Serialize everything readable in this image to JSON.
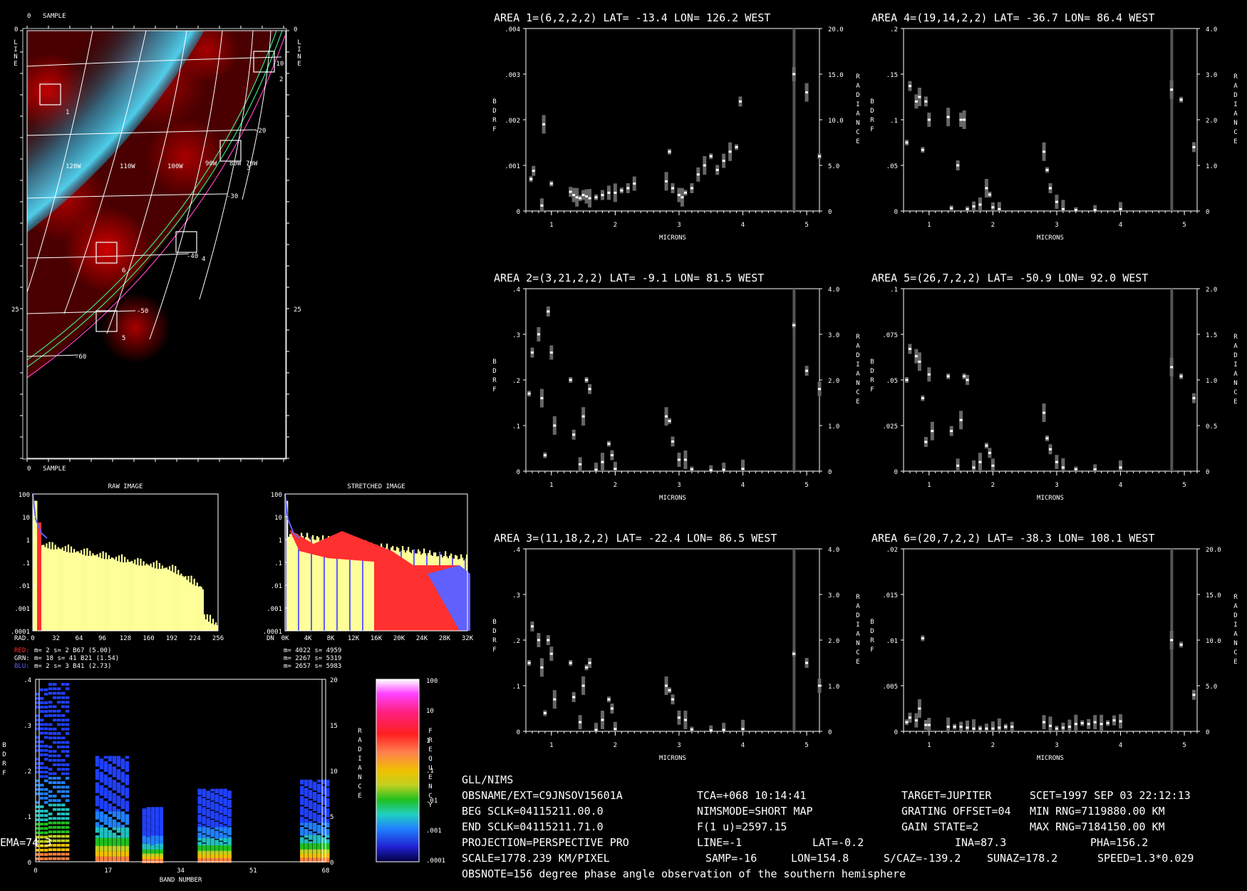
{
  "header": "GLL/NIMS",
  "info": [
    [
      "OBSNAME/EXT=C9JNSOV15601A",
      "TCA=+068 10:14:41",
      "TARGET=JUPITER",
      "SCET=1997 SEP 03 22:12:13"
    ],
    [
      "BEG SCLK=04115211.00.0",
      "NIMSMODE=SHORT MAP",
      "GRATING OFFSET=04",
      "MIN RNG=7119880.00 KM"
    ],
    [
      "END SCLK=04115211.71.0",
      "F(1 u)=2597.15",
      "GAIN STATE=2",
      "MAX RNG=7184150.00 KM"
    ],
    [
      "PROJECTION=PERSPECTIVE PRO",
      "LINE=-1",
      "LAT=-0.2",
      "INA=87.3",
      "PHA=156.2",
      "EMA=74.3"
    ],
    [
      "SCALE=1778.239 KM/PIXEL",
      "SAMP=-16",
      "LON=154.8",
      "S/CAZ=-139.2",
      "SUNAZ=178.2",
      "SPEED=1.3*0.029"
    ],
    [
      "OBSNOTE=156 degree phase angle observation of the southern hemisphere"
    ]
  ],
  "image": {
    "sample_label": "SAMPLE",
    "line_label": "LINE",
    "axis_ticks": [
      "0",
      "25"
    ],
    "lon_labels": [
      "120W",
      "110W",
      "100W",
      "90W",
      "80W",
      "70W"
    ],
    "lat_labels": [
      "-10",
      "-20",
      "-30",
      "-40",
      "-50",
      "-60"
    ],
    "boxes": [
      "1",
      "2",
      "3",
      "4",
      "5",
      "6"
    ]
  },
  "histograms": {
    "raw_title": "RAW IMAGE",
    "stretched_title": "STRETCHED IMAGE",
    "raw_x_label": "RAD.",
    "stretched_x_label": "DN",
    "y_ticks": [
      "100",
      "10",
      "1",
      ".1",
      ".01",
      ".001",
      ".0001"
    ],
    "raw_x_ticks": [
      "0",
      "32",
      "64",
      "96",
      "128",
      "160",
      "192",
      "224",
      "256"
    ],
    "stretched_x_ticks": [
      "0K",
      "4K",
      "8K",
      "12K",
      "16K",
      "20K",
      "24K",
      "28K",
      "32K"
    ],
    "stats_raw": [
      {
        "label": "RED:",
        "text": "m=    2 s=    2 B67 (5.00)",
        "color": "#ff3030"
      },
      {
        "label": "GRN:",
        "text": "m=   18 s=   41 B21 (1.54)",
        "color": "#ffffff"
      },
      {
        "label": "BLU:",
        "text": "m=    2 s=    3 B41 (2.73)",
        "color": "#6060ff"
      }
    ],
    "stats_stretched": [
      "m= 4022 s= 4959",
      "m= 2267 s= 5319",
      "m= 2657 s= 5983"
    ]
  },
  "spectrogram": {
    "y_ticks_left": [
      ".4",
      ".3",
      ".2",
      ".1",
      "0"
    ],
    "y_ticks_right": [
      "20",
      "15",
      "10",
      "5",
      "0"
    ],
    "x_ticks": [
      "0",
      "17",
      "34",
      "51",
      "68"
    ],
    "x_label": "BAND NUMBER",
    "left_label": "BDRF",
    "right_label": "RADIANCE",
    "colorbar_label": "FREQUENCY",
    "colorbar_ticks": [
      "100",
      "10",
      "1",
      ".1",
      ".01",
      ".001",
      ".0001"
    ]
  },
  "plot_labels": {
    "x": "MICRONS",
    "left": "BDRF",
    "right": "RADIANCE"
  },
  "chart_data": [
    {
      "type": "scatter",
      "title": "AREA 1=(6,2,2,2) LAT= -13.4 LON= 126.2 WEST",
      "xlabel": "MICRONS",
      "ylabel": "BDRF",
      "y2label": "RADIANCE",
      "xlim": [
        0.6,
        5.2
      ],
      "ylim": [
        0,
        0.004
      ],
      "y2lim": [
        0,
        20
      ],
      "yticks": [
        "0",
        ".001",
        ".002",
        ".003",
        ".004"
      ],
      "y2ticks": [
        "0",
        "5.0",
        "10.0",
        "15.0",
        "20.0"
      ],
      "xticks": [
        "1",
        "2",
        "3",
        "4",
        "5"
      ],
      "x": [
        0.68,
        0.72,
        0.85,
        0.88,
        1.0,
        1.3,
        1.35,
        1.4,
        1.45,
        1.5,
        1.55,
        1.6,
        1.7,
        1.8,
        1.9,
        2.0,
        2.1,
        2.2,
        2.3,
        2.8,
        2.85,
        2.9,
        3.0,
        3.05,
        3.1,
        3.2,
        3.3,
        3.4,
        3.5,
        3.6,
        3.7,
        3.8,
        3.9,
        3.96,
        4.8,
        5.0,
        5.2
      ],
      "y": [
        0.0007,
        0.00088,
        0.00012,
        0.0019,
        0.0006,
        0.00042,
        0.00035,
        0.0003,
        0.00028,
        0.00035,
        0.00032,
        0.00028,
        0.0003,
        0.00035,
        0.0004,
        0.0004,
        0.00045,
        0.0005,
        0.0006,
        0.00065,
        0.0013,
        0.0005,
        0.00035,
        0.0003,
        0.0004,
        0.0005,
        0.0008,
        0.001,
        0.0012,
        0.0009,
        0.0011,
        0.0013,
        0.0014,
        0.0024,
        0.003,
        0.0026,
        0.0012
      ]
    },
    {
      "type": "scatter",
      "title": "AREA 4=(19,14,2,2) LAT= -36.7 LON=  86.4 WEST",
      "xlabel": "MICRONS",
      "ylabel": "BDRF",
      "y2label": "RADIANCE",
      "xlim": [
        0.6,
        5.2
      ],
      "ylim": [
        0,
        0.2
      ],
      "y2lim": [
        0,
        4
      ],
      "yticks": [
        "0",
        ".05",
        ".1",
        ".15",
        ".2"
      ],
      "y2ticks": [
        "0",
        "1.0",
        "2.0",
        "3.0",
        "4.0"
      ],
      "xticks": [
        "1",
        "2",
        "3",
        "4",
        "5"
      ],
      "x": [
        0.65,
        0.7,
        0.8,
        0.85,
        0.9,
        0.95,
        1.0,
        1.3,
        1.35,
        1.45,
        1.5,
        1.55,
        1.6,
        1.7,
        1.8,
        1.9,
        1.95,
        2.0,
        2.1,
        2.8,
        2.85,
        2.9,
        3.0,
        3.1,
        3.3,
        3.6,
        4.0,
        4.8,
        4.95,
        5.15
      ],
      "y": [
        0.075,
        0.137,
        0.12,
        0.125,
        0.067,
        0.12,
        0.1,
        0.103,
        0.003,
        0.05,
        0.1,
        0.1,
        0.002,
        0.005,
        0.007,
        0.025,
        0.018,
        0.004,
        0.002,
        0.065,
        0.045,
        0.025,
        0.01,
        0.002,
        0.001,
        0.001,
        0.002,
        0.133,
        0.122,
        0.07
      ]
    },
    {
      "type": "scatter",
      "title": "AREA 2=(3,21,2,2) LAT=  -9.1 LON=  81.5 WEST",
      "xlabel": "MICRONS",
      "ylabel": "BDRF",
      "y2label": "RADIANCE",
      "xlim": [
        0.6,
        5.2
      ],
      "ylim": [
        0,
        0.4
      ],
      "y2lim": [
        0,
        4
      ],
      "yticks": [
        "0",
        ".1",
        ".2",
        ".3",
        ".4"
      ],
      "y2ticks": [
        "0",
        "1.0",
        "2.0",
        "3.0",
        "4.0"
      ],
      "xticks": [
        "1",
        "2",
        "3",
        "4",
        "5"
      ],
      "x": [
        0.65,
        0.7,
        0.8,
        0.85,
        0.9,
        0.95,
        1.0,
        1.05,
        1.3,
        1.35,
        1.45,
        1.5,
        1.55,
        1.6,
        1.7,
        1.8,
        1.9,
        1.95,
        2.0,
        2.8,
        2.85,
        2.9,
        3.0,
        3.1,
        3.2,
        3.5,
        3.7,
        4.0,
        4.8,
        5.0,
        5.2
      ],
      "y": [
        0.17,
        0.26,
        0.3,
        0.16,
        0.035,
        0.35,
        0.26,
        0.1,
        0.2,
        0.08,
        0.015,
        0.12,
        0.2,
        0.18,
        0.003,
        0.02,
        0.06,
        0.035,
        0.005,
        0.12,
        0.11,
        0.065,
        0.025,
        0.025,
        0.004,
        0.002,
        0.003,
        0.005,
        0.32,
        0.22,
        0.18
      ]
    },
    {
      "type": "scatter",
      "title": "AREA 5=(26,7,2,2) LAT= -50.9 LON=  92.0 WEST",
      "xlabel": "MICRONS",
      "ylabel": "BDRF",
      "y2label": "RADIANCE",
      "xlim": [
        0.6,
        5.2
      ],
      "ylim": [
        0,
        0.1
      ],
      "y2lim": [
        0,
        2
      ],
      "yticks": [
        "0",
        ".025",
        ".05",
        ".075",
        ".1"
      ],
      "y2ticks": [
        "0",
        "0.5",
        "1.0",
        "1.5",
        "2.0"
      ],
      "xticks": [
        "1",
        "2",
        "3",
        "4",
        "5"
      ],
      "x": [
        0.65,
        0.7,
        0.8,
        0.85,
        0.9,
        0.95,
        1.0,
        1.05,
        1.3,
        1.35,
        1.45,
        1.5,
        1.55,
        1.6,
        1.7,
        1.8,
        1.9,
        1.95,
        2.0,
        2.8,
        2.85,
        2.9,
        3.0,
        3.1,
        3.3,
        3.6,
        4.0,
        4.8,
        4.95,
        5.15
      ],
      "y": [
        0.05,
        0.067,
        0.063,
        0.06,
        0.04,
        0.016,
        0.053,
        0.022,
        0.052,
        0.022,
        0.003,
        0.028,
        0.052,
        0.05,
        0.002,
        0.005,
        0.014,
        0.01,
        0.003,
        0.032,
        0.018,
        0.012,
        0.005,
        0.002,
        0.001,
        0.001,
        0.002,
        0.057,
        0.052,
        0.04
      ]
    },
    {
      "type": "scatter",
      "title": "AREA 3=(11,18,2,2) LAT= -22.4 LON=  86.5 WEST",
      "xlabel": "MICRONS",
      "ylabel": "BDRF",
      "y2label": "RADIANCE",
      "xlim": [
        0.6,
        5.2
      ],
      "ylim": [
        0,
        0.4
      ],
      "y2lim": [
        0,
        4
      ],
      "yticks": [
        "0",
        ".1",
        ".2",
        ".3",
        ".4"
      ],
      "y2ticks": [
        "0",
        "1.0",
        "2.0",
        "3.0",
        "4.0"
      ],
      "xticks": [
        "1",
        "2",
        "3",
        "4",
        "5"
      ],
      "x": [
        0.65,
        0.7,
        0.8,
        0.85,
        0.9,
        0.95,
        1.0,
        1.05,
        1.3,
        1.35,
        1.45,
        1.5,
        1.55,
        1.6,
        1.7,
        1.8,
        1.9,
        1.95,
        2.0,
        2.8,
        2.85,
        2.9,
        3.0,
        3.1,
        3.2,
        3.5,
        3.7,
        4.0,
        4.8,
        5.0,
        5.2
      ],
      "y": [
        0.15,
        0.23,
        0.2,
        0.14,
        0.04,
        0.2,
        0.17,
        0.07,
        0.15,
        0.075,
        0.02,
        0.1,
        0.14,
        0.15,
        0.003,
        0.025,
        0.07,
        0.05,
        0.005,
        0.1,
        0.09,
        0.07,
        0.03,
        0.025,
        0.004,
        0.002,
        0.003,
        0.005,
        0.17,
        0.15,
        0.1
      ]
    },
    {
      "type": "scatter",
      "title": "AREA 6=(20,7,2,2) LAT= -38.3 LON= 108.1 WEST",
      "xlabel": "MICRONS",
      "ylabel": "BDRF",
      "y2label": "RADIANCE",
      "xlim": [
        0.6,
        5.2
      ],
      "ylim": [
        0,
        0.02
      ],
      "y2lim": [
        0,
        20
      ],
      "yticks": [
        "0",
        ".005",
        ".01",
        ".015",
        ".02"
      ],
      "y2ticks": [
        "0",
        "5.0",
        "10.0",
        "15.0",
        "20.0"
      ],
      "xticks": [
        "1",
        "2",
        "3",
        "4",
        "5"
      ],
      "x": [
        0.65,
        0.7,
        0.8,
        0.85,
        0.9,
        0.95,
        1.0,
        1.3,
        1.4,
        1.5,
        1.6,
        1.7,
        1.8,
        1.9,
        2.0,
        2.1,
        2.2,
        2.3,
        2.8,
        2.9,
        3.0,
        3.1,
        3.2,
        3.3,
        3.4,
        3.5,
        3.6,
        3.7,
        3.8,
        3.9,
        4.0,
        4.8,
        4.95,
        5.15
      ],
      "y": [
        0.001,
        0.0015,
        0.0012,
        0.0025,
        0.0102,
        0.0007,
        0.0007,
        0.0005,
        0.0005,
        0.0005,
        0.0004,
        0.0003,
        0.0003,
        0.0003,
        0.0003,
        0.0004,
        0.0005,
        0.0005,
        0.001,
        0.0006,
        0.0003,
        0.0004,
        0.0005,
        0.0008,
        0.0009,
        0.0008,
        0.001,
        0.0008,
        0.0009,
        0.0012,
        0.0011,
        0.01,
        0.0095,
        0.004
      ]
    }
  ]
}
